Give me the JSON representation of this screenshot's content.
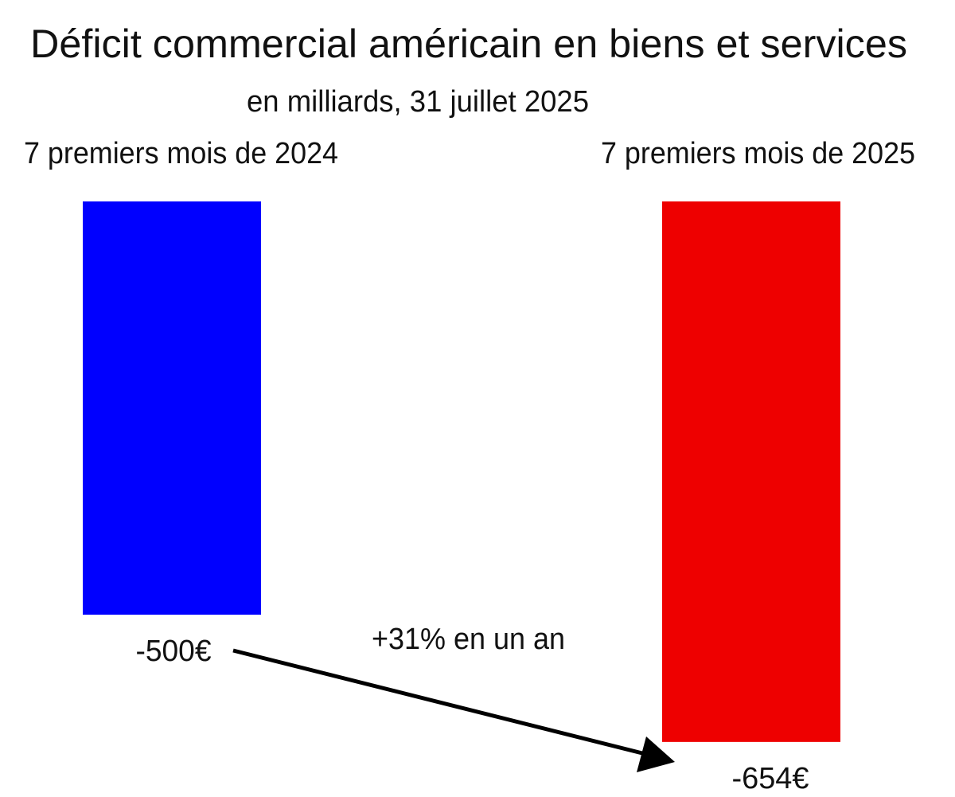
{
  "chart_data": {
    "type": "bar",
    "title": "Déficit commercial américain en biens et services",
    "subtitle": "en milliards, 31 juillet 2025",
    "categories": [
      "7 premiers mois de 2024",
      "7 premiers mois de 2025"
    ],
    "values": [
      -500,
      -654
    ],
    "value_labels": [
      "-500€",
      "-654€"
    ],
    "colors": [
      "#0000ff",
      "#ee0000"
    ],
    "annotation": "+31% en un an",
    "xlabel": "",
    "ylabel": "",
    "ylim": [
      -700,
      0
    ],
    "grid": false
  }
}
